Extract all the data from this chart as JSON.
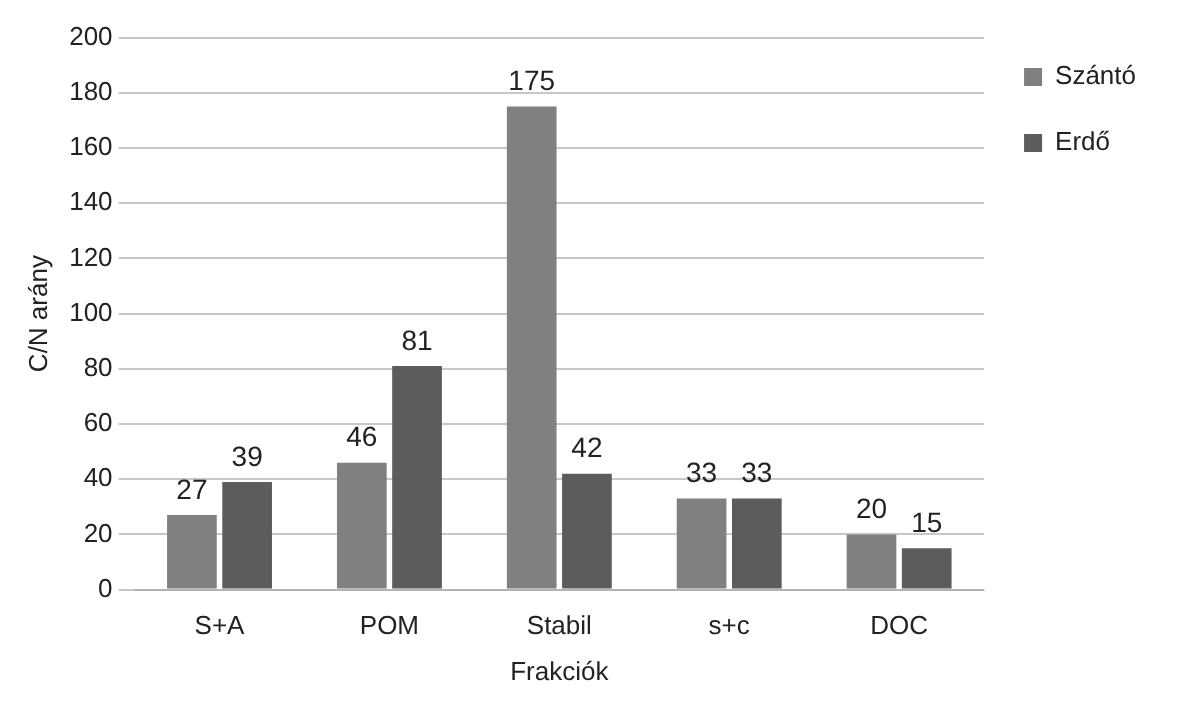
{
  "chart_data": {
    "type": "bar",
    "xlabel": "Frakciók",
    "ylabel": "C/N arány",
    "categories": [
      "S+A",
      "POM",
      "Stabil",
      "s+c",
      "DOC"
    ],
    "series": [
      {
        "name": "Szántó",
        "color": "#808080",
        "values": [
          27,
          46,
          175,
          33,
          20
        ]
      },
      {
        "name": "Erdő",
        "color": "#5c5c5c",
        "values": [
          39,
          81,
          42,
          33,
          15
        ]
      }
    ],
    "ylim": [
      0,
      200
    ],
    "yticks": [
      0,
      20,
      40,
      60,
      80,
      100,
      120,
      140,
      160,
      180,
      200
    ],
    "grid": "y",
    "legend": "top right",
    "data_labels": true
  }
}
